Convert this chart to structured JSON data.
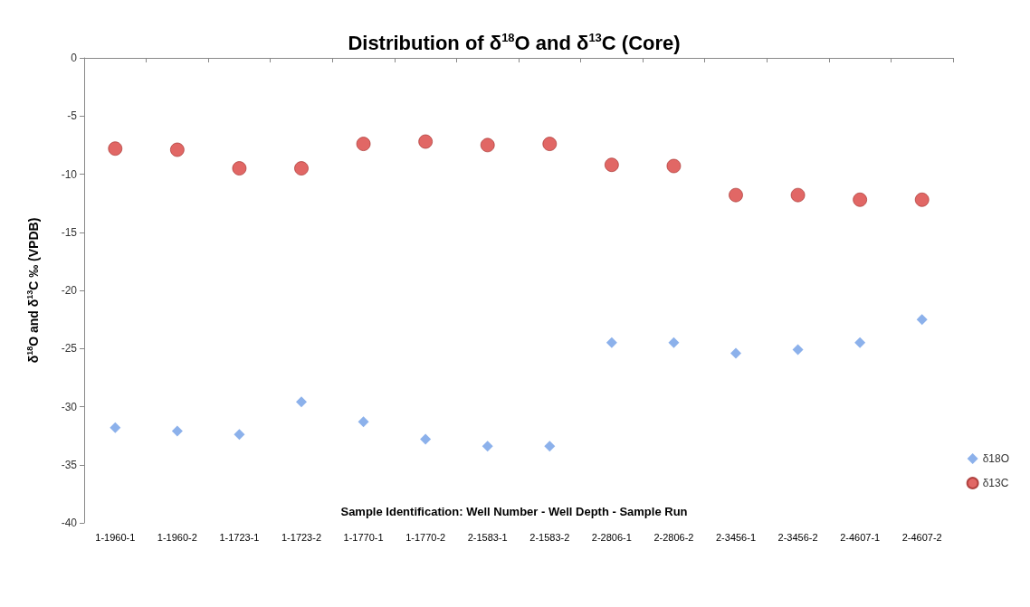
{
  "chart_data": {
    "type": "scatter",
    "title": "Distribution of δ$^{18}$O and δ$^{13}$C (Core)",
    "xlabel": "Sample Identification: Well Number - Well Depth - Sample Run",
    "ylabel": "δ$^{18}$O and δ$^{13}$C ‰ (VPDB)",
    "categories": [
      "1-1960-1",
      "1-1960-2",
      "1-1723-1",
      "1-1723-2",
      "1-1770-1",
      "1-1770-2",
      "2-1583-1",
      "2-1583-2",
      "2-2806-1",
      "2-2806-2",
      "2-3456-1",
      "2-3456-2",
      "2-4607-1",
      "2-4607-2"
    ],
    "series": [
      {
        "name": "δ18O",
        "color": "#6f9ee6",
        "marker": "diamond",
        "values": [
          -31.8,
          -32.1,
          -32.4,
          -29.6,
          -31.3,
          -32.8,
          -33.4,
          -33.4,
          -24.5,
          -24.5,
          -25.4,
          -25.1,
          -24.5,
          -22.5
        ]
      },
      {
        "name": "δ13C",
        "color": "#d9413f",
        "marker": "circle",
        "values": [
          -7.8,
          -7.9,
          -9.5,
          -9.5,
          -7.4,
          -7.2,
          -7.5,
          -7.4,
          -9.2,
          -9.3,
          -11.8,
          -11.8,
          -12.2,
          -12.2
        ]
      }
    ],
    "ylim": [
      -40,
      0
    ],
    "yticks": [
      -40,
      -35,
      -30,
      -25,
      -20,
      -15,
      -10,
      -5,
      0
    ],
    "grid": false,
    "legend": "right"
  }
}
